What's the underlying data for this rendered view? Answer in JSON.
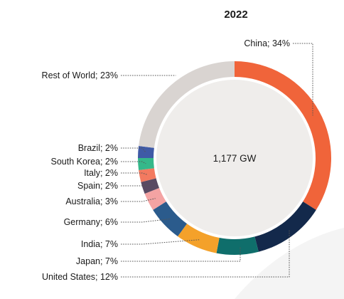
{
  "chart_data": {
    "type": "pie",
    "title": "2022",
    "center_label": "1,177 GW",
    "legend": "none",
    "slices": [
      {
        "label": "China; 34%",
        "value": 34,
        "color": "#f0643a"
      },
      {
        "label": "United States; 12%",
        "value": 12,
        "color": "#13294b"
      },
      {
        "label": "Japan; 7%",
        "value": 7,
        "color": "#0f6e6b"
      },
      {
        "label": "India; 7%",
        "value": 7,
        "color": "#f4a12a"
      },
      {
        "label": "Germany; 6%",
        "value": 6,
        "color": "#2b5b8c"
      },
      {
        "label": "Australia; 3%",
        "value": 3,
        "color": "#f4a3a3"
      },
      {
        "label": "Spain; 2%",
        "value": 2,
        "color": "#5a4a63"
      },
      {
        "label": "Italy; 2%",
        "value": 2,
        "color": "#f37a60"
      },
      {
        "label": "South Korea; 2%",
        "value": 2,
        "color": "#35b88a"
      },
      {
        "label": "Brazil; 2%",
        "value": 2,
        "color": "#3f5aa6"
      },
      {
        "label": "Rest of World; 23%",
        "value": 23,
        "color": "#d9d4d1"
      }
    ]
  }
}
